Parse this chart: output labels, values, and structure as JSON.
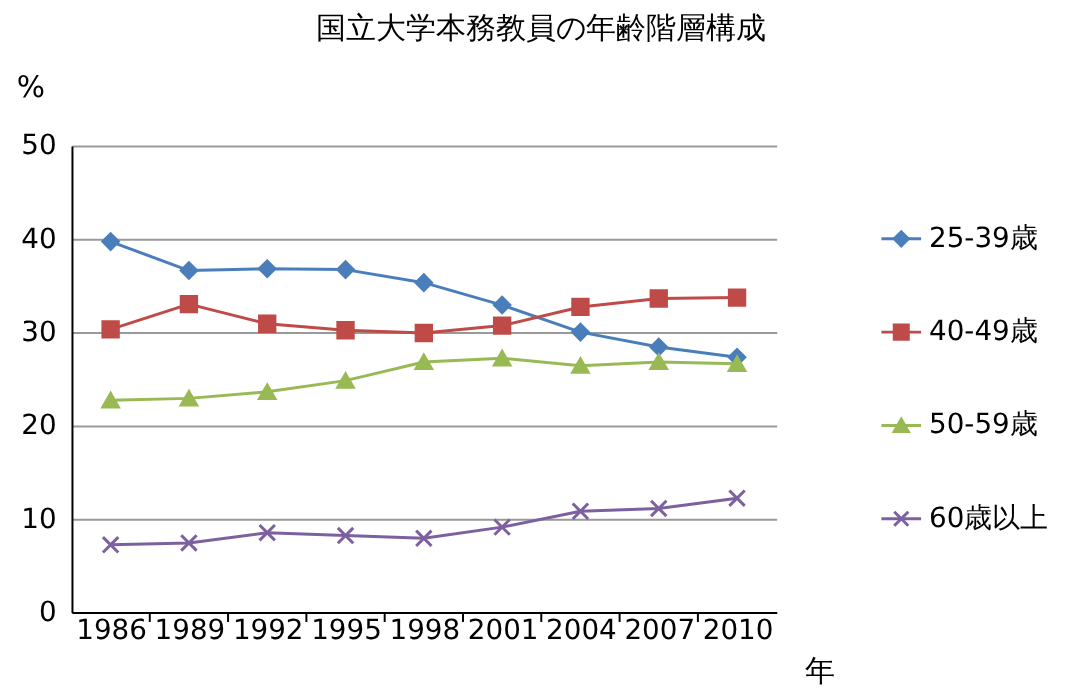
{
  "chart_data": {
    "type": "line",
    "title": "国立大学本務教員の年齢階層構成",
    "xlabel": "年",
    "ylabel": "%",
    "categories": [
      "1986",
      "1989",
      "1992",
      "1995",
      "1998",
      "2001",
      "2004",
      "2007",
      "2010"
    ],
    "series": [
      {
        "name": "25-39歳",
        "color": "#4a7ebb",
        "marker": "diamond",
        "values": [
          39.7,
          36.6,
          36.8,
          36.7,
          35.3,
          32.9,
          30.0,
          28.4,
          27.3
        ]
      },
      {
        "name": "40-49歳",
        "color": "#be4b48",
        "marker": "square",
        "values": [
          30.3,
          33.0,
          30.9,
          30.2,
          29.9,
          30.7,
          32.7,
          33.6,
          33.7
        ]
      },
      {
        "name": "50-59歳",
        "color": "#98b954",
        "marker": "triangle",
        "values": [
          22.7,
          22.9,
          23.6,
          24.8,
          26.8,
          27.2,
          26.4,
          26.8,
          26.6
        ]
      },
      {
        "name": "60歳以上",
        "color": "#7d60a0",
        "marker": "cross",
        "values": [
          7.2,
          7.4,
          8.5,
          8.2,
          7.9,
          9.1,
          10.8,
          11.1,
          12.2
        ]
      }
    ],
    "ylim": [
      0,
      50
    ],
    "yticks": [
      0,
      10,
      20,
      30,
      40,
      50
    ],
    "grid": "y",
    "legend": "right",
    "line_style": "solid"
  }
}
